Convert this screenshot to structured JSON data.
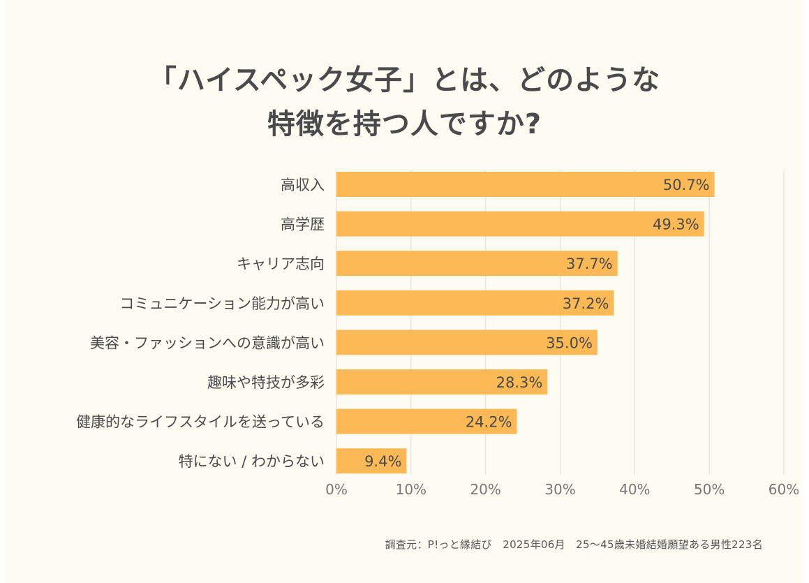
{
  "chart_data": {
    "type": "bar",
    "orientation": "horizontal",
    "title": [
      "「ハイスペック女子」とは、どのような",
      "特徴を持つ人ですか?"
    ],
    "categories": [
      "高収入",
      "高学歴",
      "キャリア志向",
      "コミュニケーション能力が高い",
      "美容・ファッションへの意識が高い",
      "趣味や特技が多彩",
      "健康的なライフスタイルを送っている",
      "特にない / わからない"
    ],
    "values": [
      50.7,
      49.3,
      37.7,
      37.2,
      35.0,
      28.3,
      24.2,
      9.4
    ],
    "value_labels": [
      "50.7%",
      "49.3%",
      "37.7%",
      "37.2%",
      "35.0%",
      "28.3%",
      "24.2%",
      "9.4%"
    ],
    "xlim": [
      0,
      60
    ],
    "x_ticks": [
      0,
      10,
      20,
      30,
      40,
      50,
      60
    ],
    "x_tick_labels": [
      "0%",
      "10%",
      "20%",
      "30%",
      "40%",
      "50%",
      "60%"
    ],
    "grid": "vertical",
    "legend": "none",
    "colors": {
      "bar": "#fcb955",
      "grid": "#e2e2da",
      "text": "#4a4a4a",
      "tick": "#777777",
      "background": "#fcfcf3"
    }
  },
  "footnote": "調査元：P!っと縁結び　2025年06月　25〜45歳未婚結婚願望ある男性223名"
}
